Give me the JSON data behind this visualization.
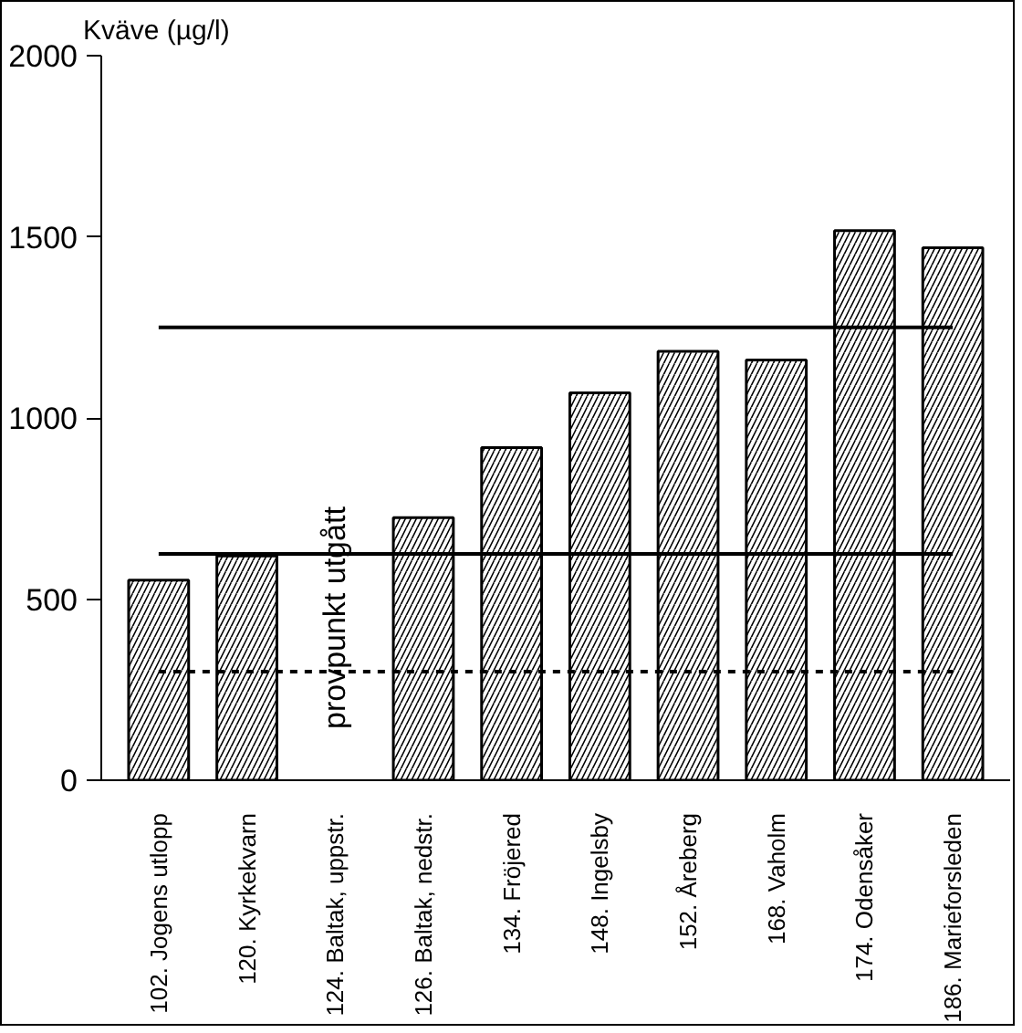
{
  "chart_data": {
    "type": "bar",
    "ylabel": "Kväve (µg/l)",
    "categories": [
      "102. Jogens utlopp",
      "120. Kyrkekvarn",
      "124. Baltak, uppstr.",
      "126. Baltak, nedstr.",
      "134. Fröjered",
      "148. Ingelsby",
      "152. Åreberg",
      "168. Vaholm",
      "174. Odensåker",
      "186. Marieforsleden"
    ],
    "values": [
      552,
      619,
      null,
      725,
      918,
      1069,
      1184,
      1160,
      1517,
      1470
    ],
    "color": "#000000",
    "ylim": [
      0,
      2000
    ],
    "yticks": [
      0,
      500,
      1000,
      1500,
      2000
    ],
    "grid": false,
    "ref_lines": [
      {
        "axis": "y",
        "value": 1250,
        "line_style": "solid",
        "color": "#000000"
      },
      {
        "axis": "y",
        "value": 625,
        "line_style": "solid",
        "color": "#000000"
      },
      {
        "axis": "y",
        "value": 300,
        "line_style": "dashed",
        "color": "#000000"
      }
    ],
    "annotations": [
      "provpunkt utgått"
    ]
  }
}
